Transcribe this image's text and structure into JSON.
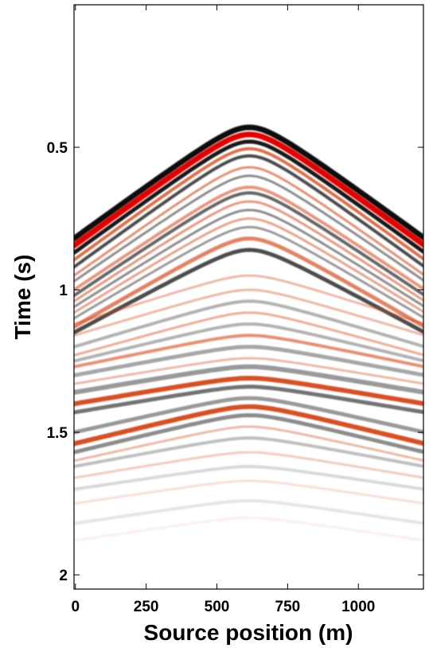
{
  "chart_data": {
    "type": "heatmap",
    "title": "",
    "xlabel": "Source position (m)",
    "ylabel": "Time (s)",
    "xlim": [
      -5,
      1230
    ],
    "ylim": [
      0.0,
      2.05
    ],
    "y_inverted": true,
    "x_ticks": [
      {
        "value": 0,
        "label": "0"
      },
      {
        "value": 250,
        "label": "250"
      },
      {
        "value": 500,
        "label": "500"
      },
      {
        "value": 750,
        "label": "750"
      },
      {
        "value": 1000,
        "label": "1000"
      }
    ],
    "y_ticks": [
      {
        "value": 0.5,
        "label": "0.5"
      },
      {
        "value": 1.0,
        "label": "1"
      },
      {
        "value": 1.5,
        "label": "1.5"
      },
      {
        "value": 2.0,
        "label": "2"
      }
    ],
    "colormap": {
      "negative": "#000000",
      "zero": "#ffffff",
      "positive": "#cc3300",
      "peak": "#e00000"
    },
    "events": [
      {
        "apex_x": 615,
        "apex_t": 0.43,
        "flank_t": 0.82,
        "color": "#000000",
        "opacity": 0.95,
        "width": 7
      },
      {
        "apex_x": 615,
        "apex_t": 0.455,
        "flank_t": 0.845,
        "color": "#e00000",
        "opacity": 1.0,
        "width": 7
      },
      {
        "apex_x": 615,
        "apex_t": 0.48,
        "flank_t": 0.87,
        "color": "#000000",
        "opacity": 0.9,
        "width": 5
      },
      {
        "apex_x": 615,
        "apex_t": 0.505,
        "flank_t": 0.895,
        "color": "#cc3300",
        "opacity": 0.7,
        "width": 4
      },
      {
        "apex_x": 615,
        "apex_t": 0.53,
        "flank_t": 0.92,
        "color": "#000000",
        "opacity": 0.7,
        "width": 4
      },
      {
        "apex_x": 615,
        "apex_t": 0.57,
        "flank_t": 0.95,
        "color": "#cc3300",
        "opacity": 0.55,
        "width": 3
      },
      {
        "apex_x": 615,
        "apex_t": 0.6,
        "flank_t": 0.97,
        "color": "#000000",
        "opacity": 0.45,
        "width": 3
      },
      {
        "apex_x": 615,
        "apex_t": 0.64,
        "flank_t": 1.0,
        "color": "#cc3300",
        "opacity": 0.5,
        "width": 4
      },
      {
        "apex_x": 615,
        "apex_t": 0.66,
        "flank_t": 1.02,
        "color": "#000000",
        "opacity": 0.6,
        "width": 4
      },
      {
        "apex_x": 615,
        "apex_t": 0.69,
        "flank_t": 1.04,
        "color": "#cc3300",
        "opacity": 0.5,
        "width": 3
      },
      {
        "apex_x": 615,
        "apex_t": 0.72,
        "flank_t": 1.06,
        "color": "#000000",
        "opacity": 0.45,
        "width": 3
      },
      {
        "apex_x": 615,
        "apex_t": 0.75,
        "flank_t": 1.08,
        "color": "#cc3300",
        "opacity": 0.45,
        "width": 3
      },
      {
        "apex_x": 615,
        "apex_t": 0.78,
        "flank_t": 1.1,
        "color": "#000000",
        "opacity": 0.4,
        "width": 3
      },
      {
        "apex_x": 615,
        "apex_t": 0.82,
        "flank_t": 1.13,
        "color": "#cc3300",
        "opacity": 0.6,
        "width": 5
      },
      {
        "apex_x": 615,
        "apex_t": 0.86,
        "flank_t": 1.15,
        "color": "#000000",
        "opacity": 0.7,
        "width": 5
      },
      {
        "apex_x": 615,
        "apex_t": 0.95,
        "flank_t": 1.12,
        "color": "#cc3300",
        "opacity": 0.35,
        "width": 3
      },
      {
        "apex_x": 615,
        "apex_t": 1.0,
        "flank_t": 1.16,
        "color": "#cc3300",
        "opacity": 0.35,
        "width": 3
      },
      {
        "apex_x": 615,
        "apex_t": 1.04,
        "flank_t": 1.2,
        "color": "#000000",
        "opacity": 0.3,
        "width": 4
      },
      {
        "apex_x": 615,
        "apex_t": 1.08,
        "flank_t": 1.23,
        "color": "#cc3300",
        "opacity": 0.4,
        "width": 3
      },
      {
        "apex_x": 615,
        "apex_t": 1.12,
        "flank_t": 1.25,
        "color": "#000000",
        "opacity": 0.3,
        "width": 4
      },
      {
        "apex_x": 615,
        "apex_t": 1.16,
        "flank_t": 1.27,
        "color": "#cc3300",
        "opacity": 0.55,
        "width": 4
      },
      {
        "apex_x": 615,
        "apex_t": 1.2,
        "flank_t": 1.3,
        "color": "#000000",
        "opacity": 0.35,
        "width": 5
      },
      {
        "apex_x": 615,
        "apex_t": 1.24,
        "flank_t": 1.33,
        "color": "#cc3300",
        "opacity": 0.35,
        "width": 3
      },
      {
        "apex_x": 615,
        "apex_t": 1.27,
        "flank_t": 1.36,
        "color": "#000000",
        "opacity": 0.4,
        "width": 6
      },
      {
        "apex_x": 615,
        "apex_t": 1.31,
        "flank_t": 1.4,
        "color": "#cc3300",
        "opacity": 0.85,
        "width": 6
      },
      {
        "apex_x": 615,
        "apex_t": 1.34,
        "flank_t": 1.43,
        "color": "#000000",
        "opacity": 0.55,
        "width": 5
      },
      {
        "apex_x": 615,
        "apex_t": 1.38,
        "flank_t": 1.5,
        "color": "#000000",
        "opacity": 0.4,
        "width": 5
      },
      {
        "apex_x": 615,
        "apex_t": 1.41,
        "flank_t": 1.54,
        "color": "#cc3300",
        "opacity": 0.85,
        "width": 6
      },
      {
        "apex_x": 615,
        "apex_t": 1.44,
        "flank_t": 1.57,
        "color": "#000000",
        "opacity": 0.45,
        "width": 5
      },
      {
        "apex_x": 615,
        "apex_t": 1.48,
        "flank_t": 1.6,
        "color": "#cc3300",
        "opacity": 0.35,
        "width": 3
      },
      {
        "apex_x": 615,
        "apex_t": 1.52,
        "flank_t": 1.62,
        "color": "#000000",
        "opacity": 0.25,
        "width": 4
      },
      {
        "apex_x": 615,
        "apex_t": 1.57,
        "flank_t": 1.66,
        "color": "#cc3300",
        "opacity": 0.25,
        "width": 3
      },
      {
        "apex_x": 615,
        "apex_t": 1.62,
        "flank_t": 1.7,
        "color": "#000000",
        "opacity": 0.15,
        "width": 4
      },
      {
        "apex_x": 615,
        "apex_t": 1.67,
        "flank_t": 1.75,
        "color": "#cc3300",
        "opacity": 0.15,
        "width": 3
      },
      {
        "apex_x": 615,
        "apex_t": 1.74,
        "flank_t": 1.82,
        "color": "#000000",
        "opacity": 0.1,
        "width": 4
      },
      {
        "apex_x": 615,
        "apex_t": 1.8,
        "flank_t": 1.88,
        "color": "#cc3300",
        "opacity": 0.08,
        "width": 3
      }
    ]
  }
}
